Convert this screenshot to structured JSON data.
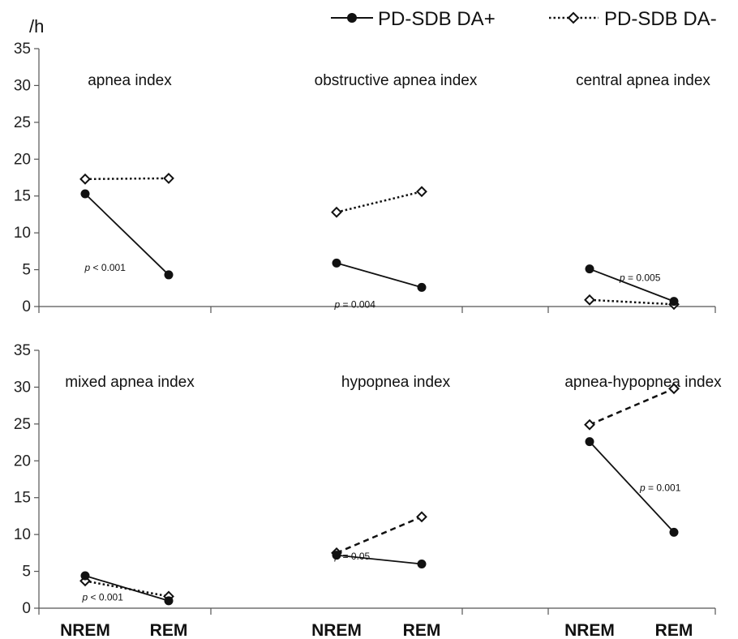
{
  "chart_data": {
    "type": "line",
    "unit_label": "/h",
    "legend": [
      {
        "name": "PD-SDB DA+",
        "marker": "filled-circle",
        "line": "solid"
      },
      {
        "name": "PD-SDB DA-",
        "marker": "open-diamond",
        "line": "dotted"
      }
    ],
    "y_ticks": [
      "0",
      "5",
      "10",
      "15",
      "20",
      "25",
      "30",
      "35"
    ],
    "ylim": [
      0,
      35
    ],
    "categories": [
      "NREM",
      "REM"
    ],
    "panels": [
      {
        "row": 0,
        "col": 0,
        "title": "apnea index",
        "p_prefix": "p",
        "p_text": " < 0.001",
        "da_plus": [
          15.3,
          4.3
        ],
        "da_minus": [
          17.3,
          17.4
        ],
        "da_minus_line": "dotted"
      },
      {
        "row": 0,
        "col": 1,
        "title": "obstructive apnea index",
        "p_prefix": "p",
        "p_text": " = 0.004",
        "da_plus": [
          5.9,
          2.6
        ],
        "da_minus": [
          12.8,
          15.6
        ],
        "da_minus_line": "dotted"
      },
      {
        "row": 0,
        "col": 2,
        "title": "central apnea index",
        "p_prefix": "p",
        "p_text": " = 0.005",
        "da_plus": [
          5.1,
          0.7
        ],
        "da_minus": [
          0.9,
          0.3
        ],
        "da_minus_line": "dotted"
      },
      {
        "row": 1,
        "col": 0,
        "title": "mixed apnea index",
        "p_prefix": "p",
        "p_text": " < 0.001",
        "da_plus": [
          4.4,
          1.0
        ],
        "da_minus": [
          3.7,
          1.6
        ],
        "da_minus_line": "dotted"
      },
      {
        "row": 1,
        "col": 1,
        "title": "hypopnea index",
        "p_prefix": "p",
        "p_text": " = 0.05",
        "da_plus": [
          7.2,
          6.0
        ],
        "da_minus": [
          7.5,
          12.4
        ],
        "da_minus_line": "dashed"
      },
      {
        "row": 1,
        "col": 2,
        "title": "apnea-hypopnea index",
        "p_prefix": "p",
        "p_text": " = 0.001",
        "da_plus": [
          22.6,
          10.3
        ],
        "da_minus": [
          24.9,
          29.8
        ],
        "da_minus_line": "dashed"
      }
    ]
  }
}
